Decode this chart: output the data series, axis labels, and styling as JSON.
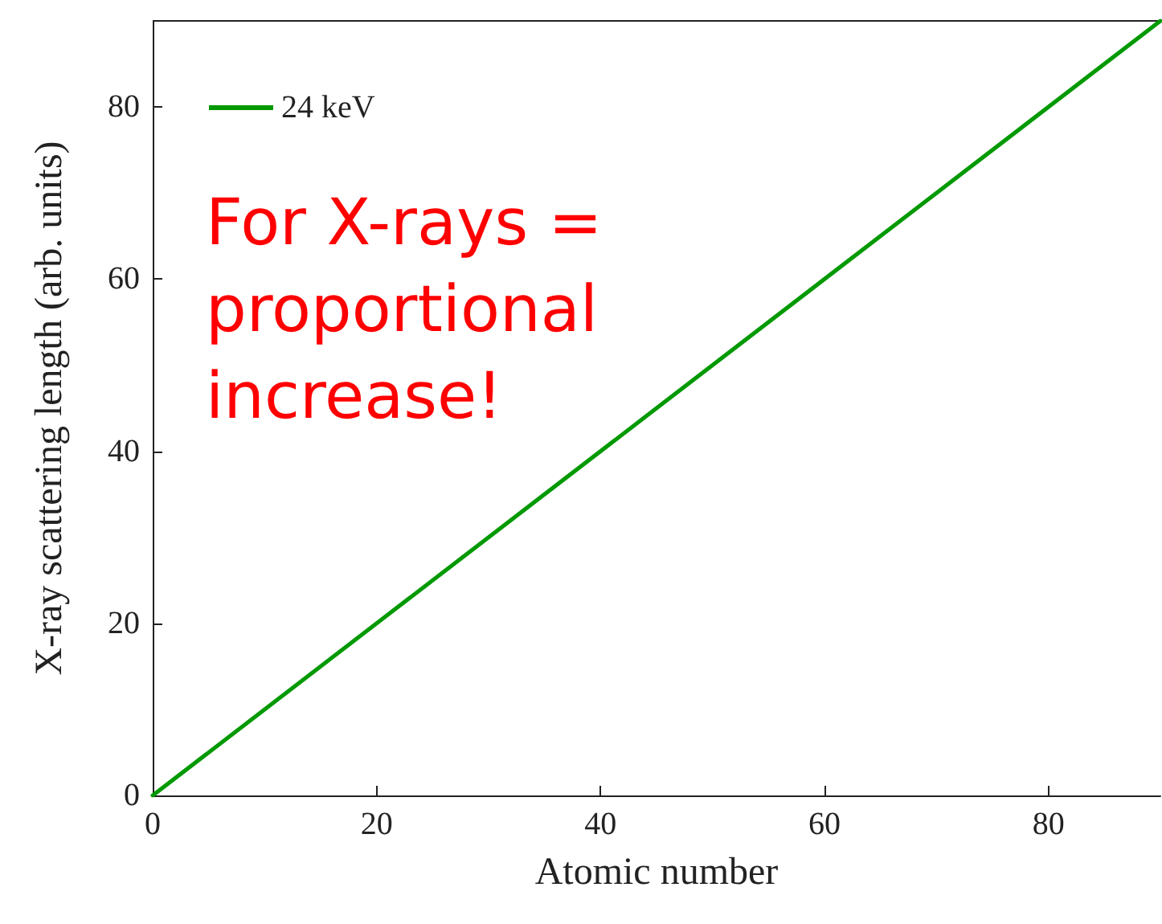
{
  "chart_data": {
    "type": "line",
    "xlabel": "Atomic number",
    "ylabel": "X-ray scattering length (arb. units)",
    "annotations": [
      "For X-rays = proportional increase!"
    ],
    "series": [
      {
        "name": "24 keV",
        "color": "#009900",
        "x": [
          0,
          90
        ],
        "values": [
          0,
          90
        ]
      }
    ],
    "xlim": [
      0,
      90
    ],
    "ylim": [
      0,
      90
    ],
    "xticks": [
      0,
      20,
      40,
      60,
      80
    ],
    "yticks": [
      0,
      20,
      40,
      60,
      80
    ],
    "grid": false,
    "legend": "top left",
    "marker": "none",
    "line_style": "solid"
  }
}
